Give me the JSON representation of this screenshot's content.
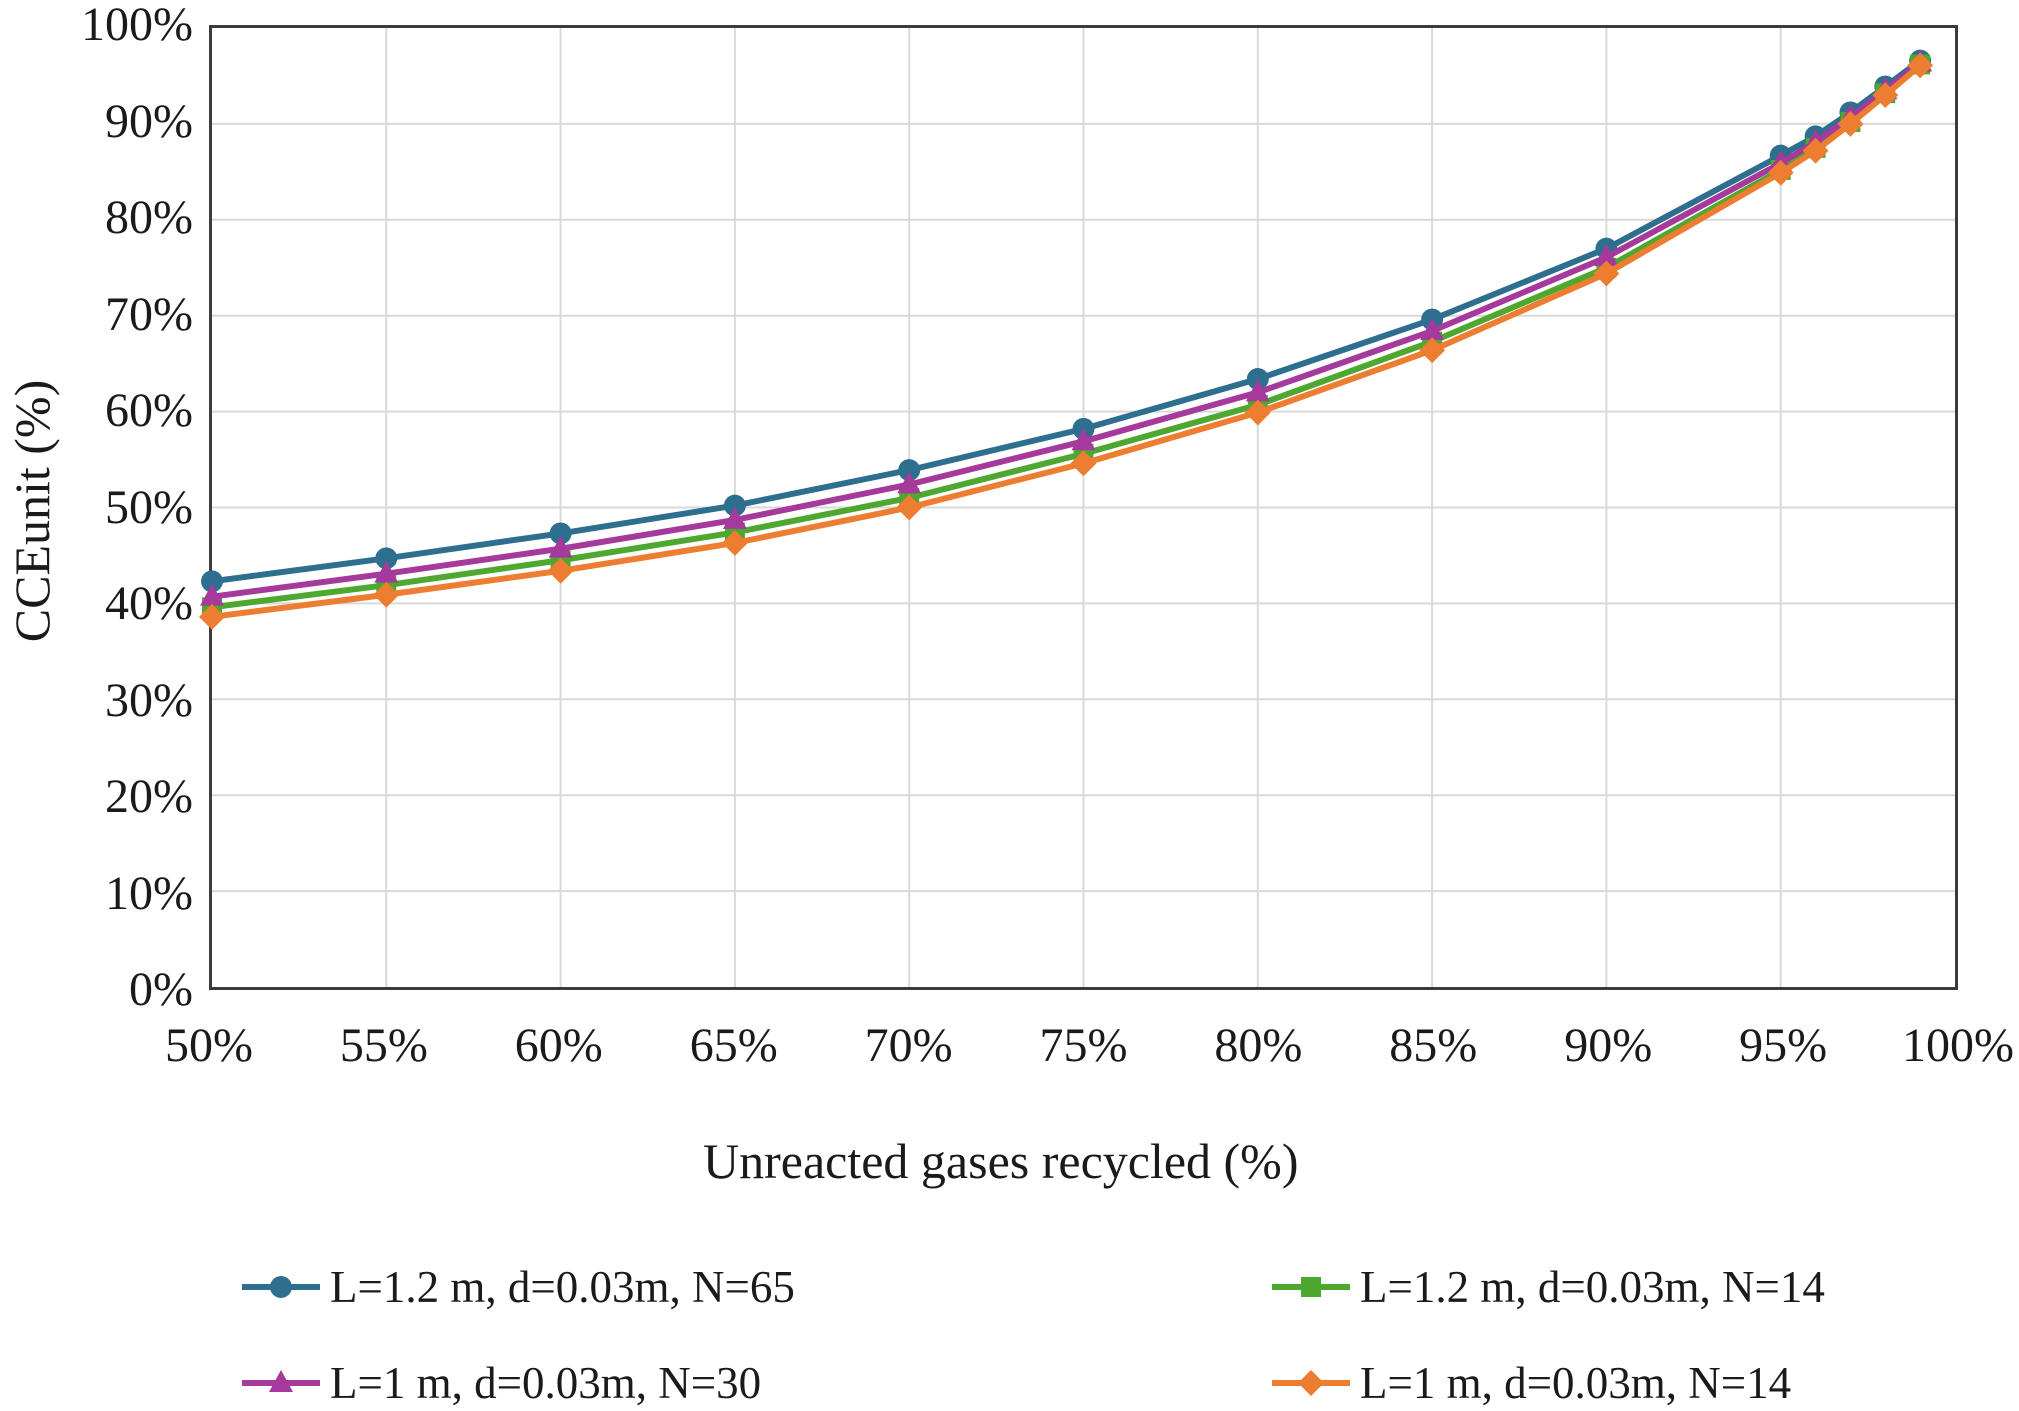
{
  "chart_data": {
    "type": "line",
    "title": "",
    "xlabel": "Unreacted gases recycled (%)",
    "ylabel": "CCEunit (%)",
    "xlim": [
      50,
      100
    ],
    "ylim": [
      0,
      100
    ],
    "grid": true,
    "gridline_color": "#d9d9d9",
    "axis_border_color": "#3b3b3b",
    "x_ticks": [
      50,
      55,
      60,
      65,
      70,
      75,
      80,
      85,
      90,
      95,
      100
    ],
    "x_tick_labels": [
      "50%",
      "55%",
      "60%",
      "65%",
      "70%",
      "75%",
      "80%",
      "85%",
      "90%",
      "95%",
      "100%"
    ],
    "y_ticks": [
      0,
      10,
      20,
      30,
      40,
      50,
      60,
      70,
      80,
      90,
      100
    ],
    "y_tick_labels": [
      "0%",
      "10%",
      "20%",
      "30%",
      "40%",
      "50%",
      "60%",
      "70%",
      "80%",
      "90%",
      "100%"
    ],
    "x": [
      50,
      55,
      60,
      65,
      70,
      75,
      80,
      85,
      90,
      95,
      96,
      97,
      98,
      99
    ],
    "series": [
      {
        "name": "L=1.2 m, d=0.03m, N=65",
        "color": "#2e6e8e",
        "marker": "circle",
        "values": [
          42.3,
          44.7,
          47.3,
          50.2,
          53.9,
          58.2,
          63.4,
          69.6,
          77.0,
          86.7,
          88.7,
          91.2,
          93.9,
          96.6
        ]
      },
      {
        "name": "L=1.2 m, d=0.03m, N=14",
        "color": "#4ea72e",
        "marker": "square",
        "values": [
          39.6,
          41.9,
          44.5,
          47.4,
          51.0,
          55.6,
          60.7,
          67.3,
          75.0,
          85.2,
          87.5,
          90.2,
          93.2,
          96.2
        ]
      },
      {
        "name": "L=1 m, d=0.03m, N=30",
        "color": "#a53a9c",
        "marker": "triangle",
        "values": [
          40.7,
          43.1,
          45.7,
          48.7,
          52.4,
          56.9,
          62.0,
          68.4,
          76.1,
          85.9,
          88.1,
          90.7,
          93.5,
          96.4
        ]
      },
      {
        "name": "L=1 m, d=0.03m, N=14",
        "color": "#ed7d31",
        "marker": "diamond",
        "values": [
          38.6,
          40.9,
          43.4,
          46.3,
          50.0,
          54.6,
          59.9,
          66.4,
          74.4,
          84.9,
          87.2,
          90.0,
          93.0,
          96.1
        ]
      }
    ],
    "legend": {
      "position": "bottom",
      "column_series_indices": [
        [
          0,
          2
        ],
        [
          1,
          3
        ]
      ]
    }
  }
}
